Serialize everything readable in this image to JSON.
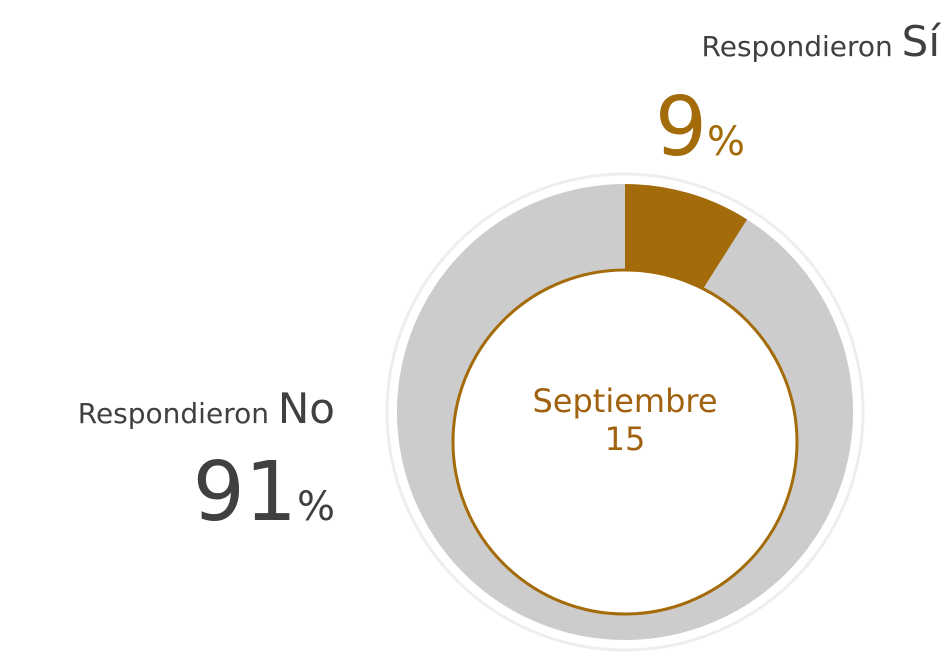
{
  "chart_data": {
    "type": "donut",
    "label_prefix": "Respondieron",
    "categories": [
      "Sí",
      "No"
    ],
    "values": [
      9,
      91
    ],
    "value_labels": [
      "9%",
      "91%"
    ],
    "colors": [
      "#a36b09",
      "#cccccc"
    ],
    "label_colors": [
      "#a36b09",
      "#404040"
    ],
    "center_label_lines": [
      "Septiembre",
      "15"
    ],
    "center_color": "#a0620f"
  }
}
